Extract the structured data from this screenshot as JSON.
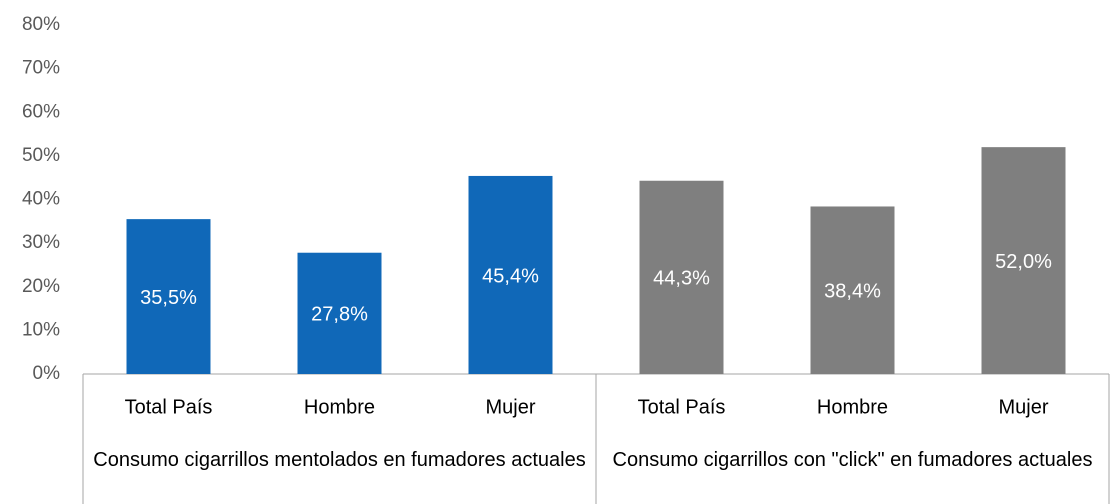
{
  "chart_data": {
    "type": "bar",
    "groups": [
      {
        "name": "Consumo cigarrillos mentolados en fumadores actuales",
        "color": "#1068b8",
        "categories": [
          "Total País",
          "Hombre",
          "Mujer"
        ],
        "values": [
          35.5,
          27.8,
          45.4
        ],
        "value_labels": [
          "35,5%",
          "27,8%",
          "45,4%"
        ]
      },
      {
        "name": "Consumo cigarrillos con \"click\" en fumadores actuales",
        "color": "#7f7f7f",
        "categories": [
          "Total País",
          "Hombre",
          "Mujer"
        ],
        "values": [
          44.3,
          38.4,
          52.0
        ],
        "value_labels": [
          "44,3%",
          "38,4%",
          "52,0%"
        ]
      }
    ],
    "ylim": [
      0,
      80
    ],
    "yticks": [
      {
        "value": 0,
        "label": "0%"
      },
      {
        "value": 10,
        "label": "10%"
      },
      {
        "value": 20,
        "label": "20%"
      },
      {
        "value": 30,
        "label": "30%"
      },
      {
        "value": 40,
        "label": "40%"
      },
      {
        "value": 50,
        "label": "50%"
      },
      {
        "value": 60,
        "label": "60%"
      },
      {
        "value": 70,
        "label": "70%"
      },
      {
        "value": 80,
        "label": "80%"
      }
    ],
    "grid": false
  }
}
